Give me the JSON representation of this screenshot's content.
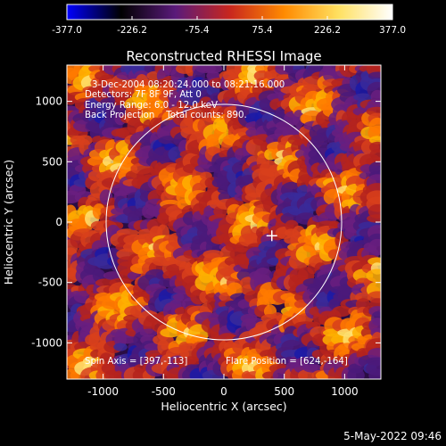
{
  "colorbar": {
    "ticks": [
      "-377.0",
      "-226.2",
      "-75.4",
      "75.4",
      "226.2",
      "377.0"
    ],
    "colors": [
      "#0000ff",
      "#000000",
      "#5a1a7a",
      "#c8261e",
      "#ff8a00",
      "#ffe060",
      "#ffffff"
    ]
  },
  "chart_data": {
    "type": "heatmap",
    "title": "Reconstructed RHESSI Image",
    "xlabel": "Heliocentric X (arcsec)",
    "ylabel": "Heliocentric Y (arcsec)",
    "xlim": [
      -1300,
      1300
    ],
    "ylim": [
      -1300,
      1300
    ],
    "x_ticks": [
      "-1000",
      "-500",
      "0",
      "500",
      "1000"
    ],
    "y_ticks": [
      "-1000",
      "-500",
      "0",
      "500",
      "1000"
    ],
    "x_tick_values": [
      -1000,
      -500,
      0,
      500,
      1000
    ],
    "y_tick_values": [
      -1000,
      -500,
      0,
      500,
      1000
    ],
    "value_range": [
      -377.0,
      377.0
    ],
    "solar_limb_radius_arcsec": 975,
    "flare_position": [
      624,
      -164
    ],
    "marker_position": [
      397,
      -113
    ],
    "annotations": {
      "line1": "3-Dec-2004 08:20:24.000 to 08:21:16.000",
      "line2": "Detectors: 7F 8F 9F, Att 0",
      "line3": "Energy Range: 6.0 - 12.0 keV",
      "line4": "Back Projection    Total counts: 890.",
      "spin_axis": "Spin Axis = [397,-113]",
      "flare_pos": "Flare Position = [624,-164]"
    }
  },
  "footer": {
    "timestamp": "5-May-2022 09:46"
  }
}
